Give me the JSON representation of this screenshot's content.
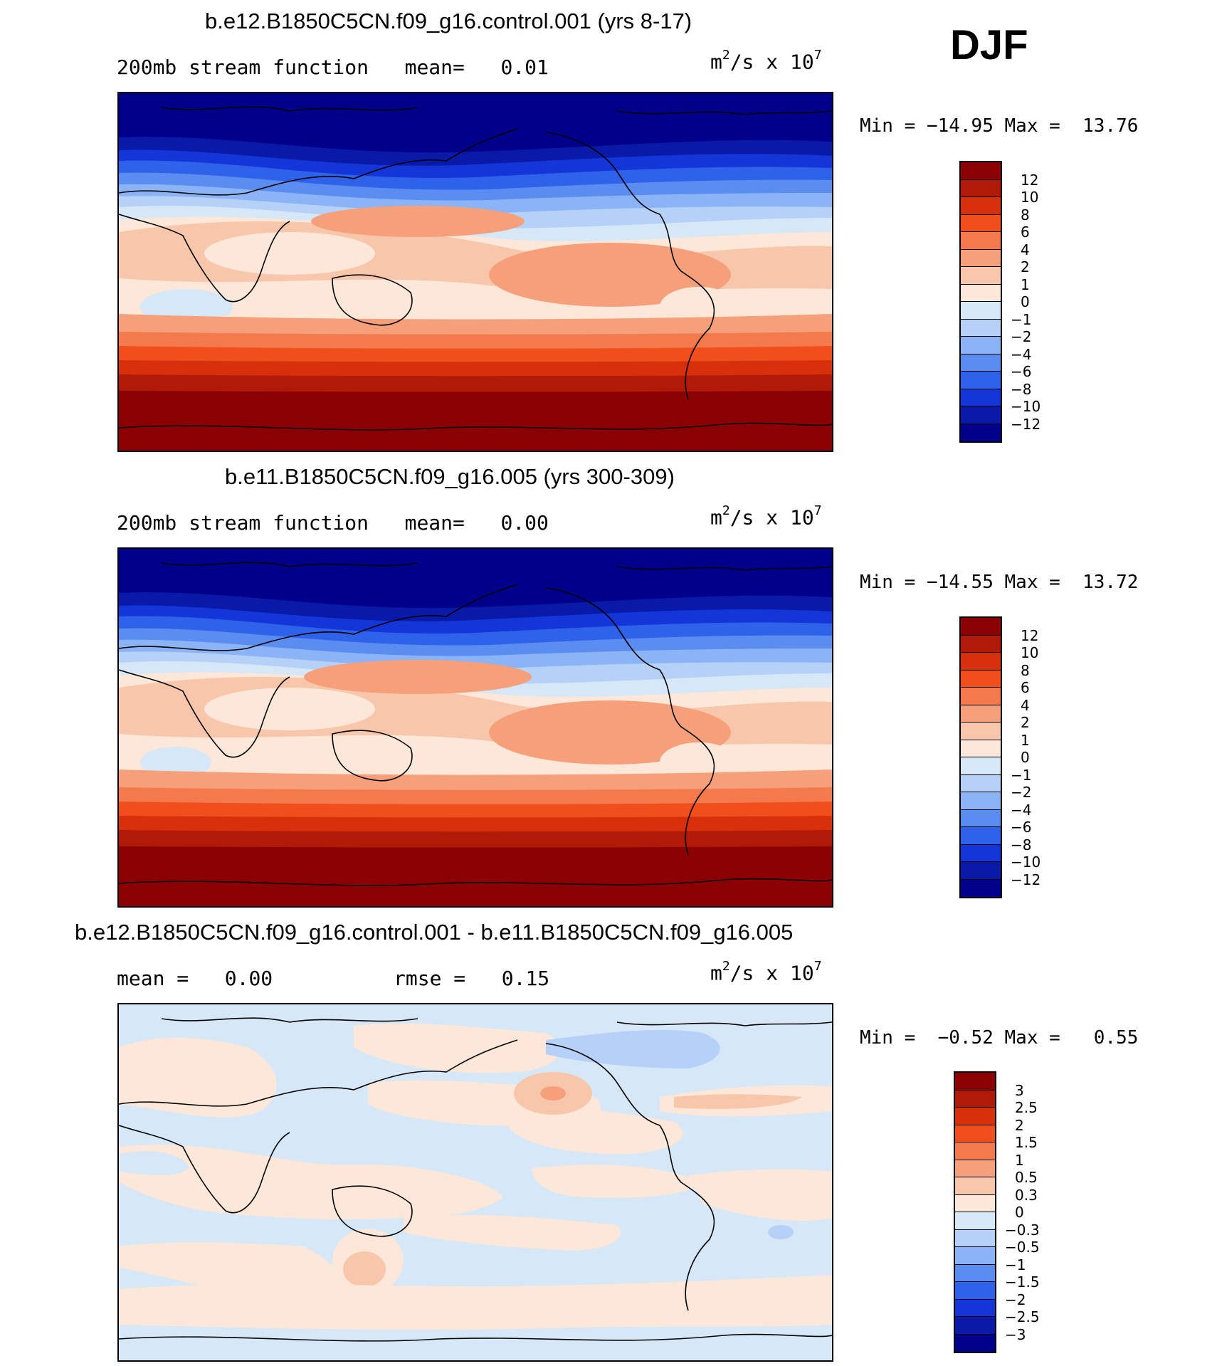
{
  "season": "DJF",
  "panels": [
    {
      "title": "b.e12.B1850C5CN.f09_g16.control.001 (yrs 8-17)",
      "subtitle_left": "200mb stream function",
      "mean_label": "mean=",
      "mean_value": "0.01",
      "units_base": "m",
      "units_exp": "2",
      "units_mid": "/s x 10",
      "units_pow": "7",
      "min_label": "Min =",
      "min_value": "−14.95",
      "max_label": "Max =",
      "max_value": "13.76",
      "colorbar": {
        "labels": [
          "12",
          "10",
          "8",
          "6",
          "4",
          "2",
          "1",
          "0",
          "−1",
          "−2",
          "−4",
          "−6",
          "−8",
          "−10",
          "−12"
        ],
        "colors": [
          "#8b0000",
          "#b01a06",
          "#d8300c",
          "#f04f1c",
          "#f47a4d",
          "#f5a07a",
          "#f8c6aa",
          "#fce7d8",
          "#d6e7f8",
          "#b6d1f8",
          "#8bb4f6",
          "#5b8cf0",
          "#2f62ea",
          "#1435d8",
          "#0a1aa8",
          "#00008b"
        ]
      }
    },
    {
      "title": "b.e11.B1850C5CN.f09_g16.005 (yrs 300-309)",
      "subtitle_left": "200mb stream function",
      "mean_label": "mean=",
      "mean_value": "0.00",
      "units_base": "m",
      "units_exp": "2",
      "units_mid": "/s x 10",
      "units_pow": "7",
      "min_label": "Min =",
      "min_value": "−14.55",
      "max_label": "Max =",
      "max_value": "13.72",
      "colorbar": {
        "labels": [
          "12",
          "10",
          "8",
          "6",
          "4",
          "2",
          "1",
          "0",
          "−1",
          "−2",
          "−4",
          "−6",
          "−8",
          "−10",
          "−12"
        ],
        "colors": [
          "#8b0000",
          "#b01a06",
          "#d8300c",
          "#f04f1c",
          "#f47a4d",
          "#f5a07a",
          "#f8c6aa",
          "#fce7d8",
          "#d6e7f8",
          "#b6d1f8",
          "#8bb4f6",
          "#5b8cf0",
          "#2f62ea",
          "#1435d8",
          "#0a1aa8",
          "#00008b"
        ]
      }
    },
    {
      "title": "b.e12.B1850C5CN.f09_g16.control.001 - b.e11.B1850C5CN.f09_g16.005",
      "subtitle_left": "mean =",
      "mean_label": "",
      "mean_value": "0.00",
      "rmse_label": "rmse =",
      "rmse_value": "0.15",
      "units_base": "m",
      "units_exp": "2",
      "units_mid": "/s x 10",
      "units_pow": "7",
      "min_label": "Min =",
      "min_value": "−0.52",
      "max_label": "Max =",
      "max_value": "0.55",
      "colorbar": {
        "labels": [
          "3",
          "2.5",
          "2",
          "1.5",
          "1",
          "0.5",
          "0.3",
          "0",
          "−0.3",
          "−0.5",
          "−1",
          "−1.5",
          "−2",
          "−2.5",
          "−3"
        ],
        "colors": [
          "#8b0000",
          "#b01a06",
          "#d8300c",
          "#f04f1c",
          "#f47a4d",
          "#f5a07a",
          "#f8c6aa",
          "#fce7d8",
          "#d6e7f8",
          "#b6d1f8",
          "#8bb4f6",
          "#5b8cf0",
          "#2f62ea",
          "#1435d8",
          "#0a1aa8",
          "#00008b"
        ]
      }
    }
  ],
  "palette": {
    "r5": "#8b0000",
    "r4": "#b01a06",
    "r3": "#d8300c",
    "r2": "#f04f1c",
    "r1": "#f47a4d",
    "r0": "#f5a07a",
    "p1": "#f8c6aa",
    "p0": "#fce7d8",
    "b0": "#d6e7f8",
    "b1": "#b6d1f8",
    "b2": "#8bb4f6",
    "b3": "#5b8cf0",
    "b4": "#2f62ea",
    "b5": "#1435d8",
    "b6": "#0a1aa8",
    "b7": "#00008b"
  }
}
